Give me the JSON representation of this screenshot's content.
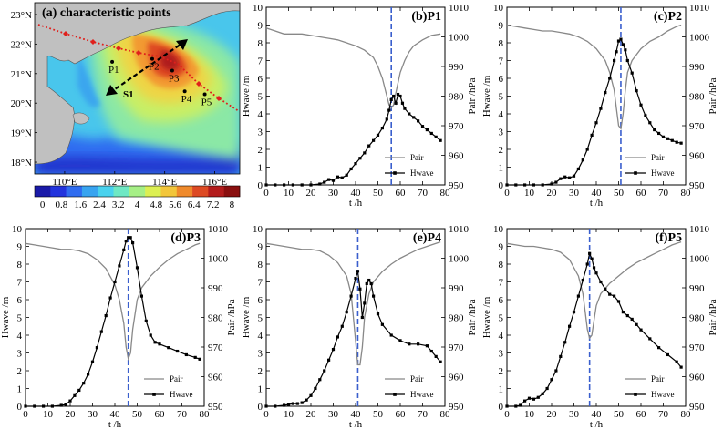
{
  "map": {
    "title": "(a) characteristic points",
    "lat_labels": [
      "23°N",
      "22°N",
      "21°N",
      "20°N",
      "19°N",
      "18°N"
    ],
    "lon_labels": [
      "110°E",
      "112°E",
      "114°E",
      "116°E"
    ],
    "points": [
      {
        "label": "P1",
        "lon": 111.9,
        "lat": 21.4
      },
      {
        "label": "P2",
        "lon": 113.5,
        "lat": 21.5
      },
      {
        "label": "P3",
        "lon": 114.3,
        "lat": 21.1
      },
      {
        "label": "P4",
        "lon": 114.8,
        "lat": 20.4
      },
      {
        "label": "P5",
        "lon": 115.6,
        "lat": 20.3
      }
    ],
    "arrow_label": "S1",
    "colorbar": {
      "ticks": [
        "0",
        "0.8",
        "1.6",
        "2.4",
        "3.2",
        "4",
        "4.8",
        "5.6",
        "6.4",
        "7.2",
        "8"
      ],
      "colors": [
        "#1a1aa8",
        "#2233dd",
        "#2f6cf0",
        "#38a4f0",
        "#49d2ee",
        "#6ee8c4",
        "#a6ef86",
        "#dcef52",
        "#f2c63a",
        "#ef8a2c",
        "#dd4a24",
        "#b31c1c",
        "#8a0f0f"
      ]
    }
  },
  "colors": {
    "pair": "#888888",
    "hwave": "#000000",
    "peak_line": "#3a5fcd"
  },
  "chart_data": [
    {
      "type": "line",
      "panel": "(b)P1",
      "xlabel": "t /h",
      "ylabel_left": "Hwave /m",
      "ylabel_right": "Pair /hPa",
      "xlim": [
        0,
        80
      ],
      "ylim_left": [
        0,
        10
      ],
      "ylim_right": [
        950,
        1010
      ],
      "xticks": [
        0,
        10,
        20,
        30,
        40,
        50,
        60,
        70,
        80
      ],
      "yticks_left": [
        0,
        1,
        2,
        3,
        4,
        5,
        6,
        7,
        8,
        9,
        10
      ],
      "yticks_right": [
        950,
        960,
        970,
        980,
        990,
        1000,
        1010
      ],
      "peak_time": 56,
      "legend": [
        "Pair",
        "Hwave"
      ],
      "legend_position": "bottom-right",
      "series": [
        {
          "name": "Pair",
          "axis": "right",
          "x": [
            0,
            4,
            8,
            12,
            16,
            20,
            24,
            28,
            32,
            36,
            40,
            44,
            48,
            50,
            52,
            54,
            55,
            56,
            57,
            58,
            60,
            62,
            64,
            66,
            70,
            74,
            78
          ],
          "y": [
            1003,
            1002,
            1001,
            1001,
            1001,
            1000.5,
            1000,
            999.5,
            999,
            998,
            997,
            995.5,
            993,
            990,
            986,
            980,
            977,
            976,
            977,
            981,
            988,
            992,
            995,
            997,
            999,
            1000.5,
            1001
          ]
        },
        {
          "name": "Hwave",
          "axis": "left",
          "x": [
            0,
            4,
            8,
            12,
            16,
            20,
            24,
            26,
            28,
            30,
            32,
            34,
            36,
            38,
            40,
            42,
            44,
            46,
            48,
            50,
            52,
            54,
            55,
            56,
            57,
            58,
            59,
            60,
            61,
            62,
            64,
            66,
            68,
            70,
            72,
            74,
            76,
            78
          ],
          "y": [
            0,
            0,
            0,
            0,
            0,
            0,
            0.05,
            0.15,
            0.3,
            0.25,
            0.45,
            0.4,
            0.55,
            0.9,
            1.2,
            1.5,
            1.8,
            2.2,
            2.5,
            2.8,
            3.2,
            3.7,
            4.2,
            4.8,
            5.0,
            4.6,
            5.1,
            5.0,
            4.6,
            4.3,
            4.0,
            3.8,
            3.6,
            3.3,
            3.1,
            2.9,
            2.7,
            2.5
          ]
        }
      ]
    },
    {
      "type": "line",
      "panel": "(c)P2",
      "xlabel": "t /h",
      "ylabel_left": "Hwave /m",
      "ylabel_right": "Pair /hPa",
      "xlim": [
        0,
        80
      ],
      "ylim_left": [
        0,
        10
      ],
      "ylim_right": [
        950,
        1010
      ],
      "xticks": [
        0,
        10,
        20,
        30,
        40,
        50,
        60,
        70,
        80
      ],
      "yticks_left": [
        0,
        1,
        2,
        3,
        4,
        5,
        6,
        7,
        8,
        9,
        10
      ],
      "yticks_right": [
        950,
        960,
        970,
        980,
        990,
        1000,
        1010
      ],
      "peak_time": 51,
      "legend": [
        "Pair",
        "Hwave"
      ],
      "legend_position": "bottom-right",
      "series": [
        {
          "name": "Pair",
          "axis": "right",
          "x": [
            0,
            4,
            8,
            12,
            16,
            20,
            24,
            28,
            32,
            36,
            40,
            44,
            46,
            48,
            49,
            50,
            51,
            52,
            53,
            54,
            56,
            60,
            64,
            68,
            72,
            76,
            78
          ],
          "y": [
            1004,
            1003.5,
            1003,
            1002.5,
            1002,
            1002,
            1001.5,
            1001,
            1000,
            998.5,
            996,
            992,
            988,
            982,
            976,
            970,
            969,
            974,
            982,
            988,
            992,
            996,
            998.5,
            1000,
            1002,
            1003.5,
            1004
          ]
        },
        {
          "name": "Hwave",
          "axis": "left",
          "x": [
            0,
            4,
            8,
            12,
            16,
            20,
            22,
            24,
            26,
            28,
            30,
            32,
            34,
            36,
            38,
            40,
            42,
            44,
            46,
            48,
            49,
            50,
            51,
            52,
            53,
            54,
            56,
            58,
            60,
            62,
            64,
            66,
            68,
            70,
            72,
            74,
            76,
            78
          ],
          "y": [
            0,
            0,
            0,
            0,
            0,
            0.05,
            0.15,
            0.35,
            0.45,
            0.4,
            0.5,
            0.9,
            1.4,
            2.0,
            2.8,
            3.5,
            4.3,
            5.2,
            6.0,
            7.0,
            7.5,
            8.1,
            8.2,
            7.9,
            7.6,
            7.0,
            6.3,
            5.3,
            4.5,
            3.9,
            3.5,
            3.1,
            2.9,
            2.7,
            2.6,
            2.5,
            2.4,
            2.35
          ]
        }
      ]
    },
    {
      "type": "line",
      "panel": "(d)P3",
      "xlabel": "t /h",
      "ylabel_left": "Hwave /m",
      "ylabel_right": "Pair /hPa",
      "xlim": [
        0,
        80
      ],
      "ylim_left": [
        0,
        10
      ],
      "ylim_right": [
        950,
        1010
      ],
      "xticks": [
        0,
        10,
        20,
        30,
        40,
        50,
        60,
        70,
        80
      ],
      "yticks_left": [
        0,
        1,
        2,
        3,
        4,
        5,
        6,
        7,
        8,
        9,
        10
      ],
      "yticks_right": [
        950,
        960,
        970,
        980,
        990,
        1000,
        1010
      ],
      "peak_time": 46,
      "legend": [
        "Pair",
        "Hwave"
      ],
      "legend_position": "bottom-right",
      "series": [
        {
          "name": "Pair",
          "axis": "right",
          "x": [
            0,
            4,
            8,
            12,
            16,
            20,
            24,
            28,
            32,
            36,
            40,
            42,
            44,
            45,
            46,
            47,
            48,
            50,
            52,
            56,
            60,
            64,
            68,
            72,
            76,
            78
          ],
          "y": [
            1005,
            1004.5,
            1004,
            1003.5,
            1003,
            1003,
            1002.5,
            1001.5,
            999.5,
            996.5,
            991,
            986,
            978,
            970,
            966,
            968,
            976,
            986,
            990,
            994,
            997,
            999.5,
            1001.5,
            1003,
            1004.5,
            1005
          ]
        },
        {
          "name": "Hwave",
          "axis": "left",
          "x": [
            0,
            4,
            8,
            12,
            16,
            18,
            20,
            22,
            24,
            26,
            28,
            30,
            32,
            34,
            36,
            38,
            40,
            42,
            44,
            45,
            46,
            47,
            48,
            50,
            52,
            54,
            56,
            58,
            60,
            64,
            68,
            72,
            76,
            78
          ],
          "y": [
            0,
            0,
            0,
            0,
            0.05,
            0.1,
            0.3,
            0.6,
            0.9,
            1.3,
            1.8,
            2.5,
            3.3,
            4.2,
            5.1,
            6.1,
            7.0,
            7.9,
            8.8,
            9.3,
            9.5,
            9.5,
            9.2,
            7.8,
            6.2,
            4.8,
            4.0,
            3.6,
            3.5,
            3.3,
            3.1,
            2.9,
            2.75,
            2.65
          ]
        }
      ]
    },
    {
      "type": "line",
      "panel": "(e)P4",
      "xlabel": "t /h",
      "ylabel_left": "Hwave /m",
      "ylabel_right": "Pair /hPa",
      "xlim": [
        0,
        80
      ],
      "ylim_left": [
        0,
        10
      ],
      "ylim_right": [
        950,
        1010
      ],
      "xticks": [
        0,
        10,
        20,
        30,
        40,
        50,
        60,
        70,
        80
      ],
      "yticks_left": [
        0,
        1,
        2,
        3,
        4,
        5,
        6,
        7,
        8,
        9,
        10
      ],
      "yticks_right": [
        950,
        960,
        970,
        980,
        990,
        1000,
        1010
      ],
      "peak_time": 41,
      "legend": [
        "Pair",
        "Hwave"
      ],
      "legend_position": "bottom-right",
      "series": [
        {
          "name": "Pair",
          "axis": "right",
          "x": [
            0,
            4,
            8,
            12,
            16,
            20,
            24,
            28,
            32,
            36,
            38,
            39,
            40,
            41,
            42,
            43,
            44,
            46,
            48,
            52,
            56,
            60,
            64,
            68,
            72,
            76,
            78
          ],
          "y": [
            1005,
            1004.5,
            1004,
            1003.5,
            1003,
            1003,
            1002.5,
            1001,
            998.5,
            994,
            988,
            980,
            972,
            964,
            964,
            970,
            980,
            988,
            992,
            995.5,
            998,
            1000,
            1001.5,
            1003,
            1004,
            1005,
            1005.5
          ]
        },
        {
          "name": "Hwave",
          "axis": "left",
          "x": [
            0,
            4,
            8,
            10,
            12,
            14,
            16,
            18,
            20,
            22,
            24,
            26,
            28,
            30,
            32,
            34,
            36,
            38,
            40,
            41,
            42,
            43,
            44,
            45,
            46,
            47,
            48,
            50,
            52,
            56,
            60,
            64,
            68,
            72,
            74,
            76,
            78
          ],
          "y": [
            0,
            0,
            0.05,
            0.1,
            0.15,
            0.15,
            0.2,
            0.35,
            0.6,
            1.0,
            1.5,
            2.0,
            2.6,
            3.2,
            3.9,
            4.5,
            5.3,
            6.2,
            7.2,
            7.6,
            6.6,
            5.0,
            5.8,
            6.9,
            7.1,
            6.9,
            6.2,
            5.2,
            4.6,
            4.0,
            3.7,
            3.5,
            3.5,
            3.4,
            3.1,
            2.8,
            2.5
          ]
        }
      ]
    },
    {
      "type": "line",
      "panel": "(f)P5",
      "xlabel": "t /h",
      "ylabel_left": "Hwave /m",
      "ylabel_right": "Pair /hPa",
      "xlim": [
        0,
        80
      ],
      "ylim_left": [
        0,
        10
      ],
      "ylim_right": [
        950,
        1010
      ],
      "xticks": [
        0,
        10,
        20,
        30,
        40,
        50,
        60,
        70,
        80
      ],
      "yticks_left": [
        0,
        1,
        2,
        3,
        4,
        5,
        6,
        7,
        8,
        9,
        10
      ],
      "yticks_right": [
        950,
        960,
        970,
        980,
        990,
        1000,
        1010
      ],
      "peak_time": 37,
      "legend": [
        "Pair",
        "Hwave"
      ],
      "legend_position": "bottom-right",
      "series": [
        {
          "name": "Pair",
          "axis": "right",
          "x": [
            0,
            4,
            8,
            12,
            16,
            20,
            24,
            28,
            32,
            34,
            35,
            36,
            37,
            38,
            39,
            40,
            42,
            46,
            50,
            54,
            58,
            62,
            66,
            70,
            74,
            78
          ],
          "y": [
            1005,
            1004.5,
            1004,
            1004,
            1003.5,
            1003,
            1002,
            999.5,
            994,
            988,
            982,
            976,
            973,
            974,
            979,
            984,
            988,
            991.5,
            994,
            996.5,
            998.5,
            1000,
            1001.5,
            1003,
            1004.5,
            1005.5
          ]
        },
        {
          "name": "Hwave",
          "axis": "left",
          "x": [
            0,
            4,
            6,
            8,
            10,
            12,
            14,
            16,
            18,
            20,
            22,
            24,
            26,
            28,
            30,
            32,
            34,
            36,
            37,
            38,
            39,
            40,
            42,
            44,
            46,
            48,
            50,
            52,
            54,
            56,
            58,
            60,
            64,
            68,
            72,
            76,
            78
          ],
          "y": [
            0,
            0,
            0.05,
            0.3,
            0.45,
            0.4,
            0.5,
            0.7,
            1.0,
            1.5,
            2.0,
            2.8,
            3.6,
            4.5,
            5.3,
            6.2,
            7.1,
            8.0,
            8.6,
            8.3,
            7.8,
            7.5,
            7.0,
            6.6,
            6.3,
            6.2,
            5.9,
            5.3,
            5.1,
            4.9,
            4.6,
            4.3,
            3.8,
            3.3,
            2.9,
            2.5,
            2.2
          ]
        }
      ]
    }
  ]
}
